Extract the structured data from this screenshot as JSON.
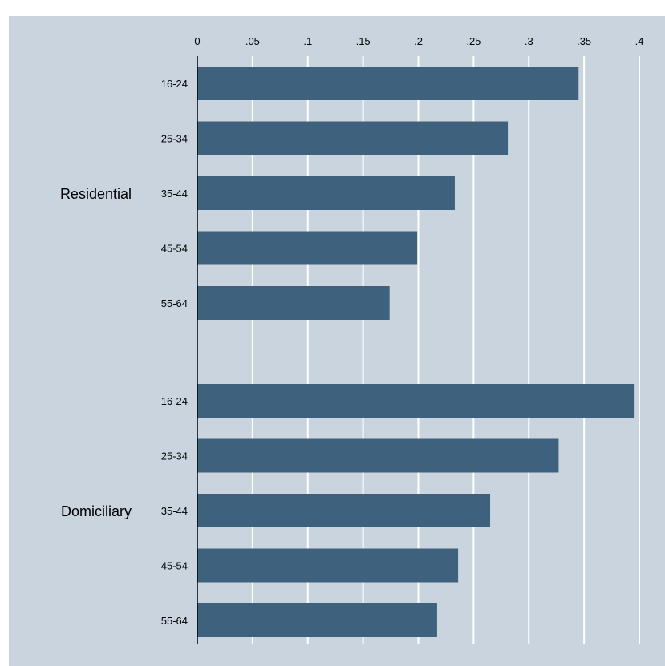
{
  "chart_data": {
    "type": "bar",
    "orientation": "horizontal",
    "title": "",
    "xlabel": "",
    "ylabel": "",
    "xlim": [
      0,
      0.4
    ],
    "x_ticks": [
      "0",
      ".05",
      ".1",
      ".15",
      ".2",
      ".25",
      ".3",
      ".35",
      ".4"
    ],
    "x_tick_values": [
      0,
      0.05,
      0.1,
      0.15,
      0.2,
      0.25,
      0.3,
      0.35,
      0.4
    ],
    "grid": true,
    "colors": {
      "background": "#c9d4df",
      "bar": "#3e627d",
      "grid": "#ffffff",
      "axis": "#000000"
    },
    "groups": [
      {
        "name": "Residential",
        "categories": [
          "16-24",
          "25-34",
          "35-44",
          "45-54",
          "55-64"
        ],
        "values": [
          0.345,
          0.281,
          0.233,
          0.199,
          0.174
        ]
      },
      {
        "name": "Domiciliary",
        "categories": [
          "16-24",
          "25-34",
          "35-44",
          "45-54",
          "55-64"
        ],
        "values": [
          0.395,
          0.327,
          0.265,
          0.236,
          0.217
        ]
      }
    ]
  }
}
